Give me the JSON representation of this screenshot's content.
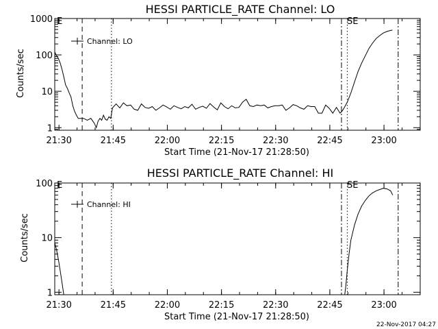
{
  "chart_data": [
    {
      "type": "line",
      "title": "HESSI PARTICLE_RATE Channel: LO",
      "xlabel": "Start Time (21-Nov-17 21:28:50)",
      "ylabel": "Counts/sec",
      "y_scale": "log",
      "ylim": [
        0.85,
        1000
      ],
      "x_units": "minutes after 21:28:50",
      "xlim": [
        0,
        101.2
      ],
      "xtick_labels": [
        "21:30",
        "21:45",
        "22:00",
        "22:15",
        "22:30",
        "22:45",
        "23:00"
      ],
      "xtick_values": [
        1.17,
        16.17,
        31.17,
        46.17,
        61.17,
        76.17,
        91.17
      ],
      "ytick_labels": [
        "1",
        "10",
        "100",
        "1000"
      ],
      "ytick_values": [
        1,
        10,
        100,
        1000
      ],
      "legend": "Channel: LO",
      "corner_labels": {
        "left": "E",
        "right": "SE"
      },
      "marker_lines": [
        {
          "style": "dashed",
          "x": 7.6
        },
        {
          "style": "dotted",
          "x": 15.7
        },
        {
          "style": "dashdot",
          "x": 79.4
        },
        {
          "style": "dotted",
          "x": 81.0
        },
        {
          "style": "dashdot",
          "x": 95.1
        }
      ],
      "series": [
        {
          "x": [
            0.0,
            0.5,
            1.0,
            1.5,
            2.0,
            2.5,
            3.0,
            3.5,
            4.0,
            4.5,
            5.0,
            5.5,
            6.0,
            6.5,
            7.0,
            7.5,
            8.0,
            9.0,
            10.0,
            11.0,
            11.5,
            12.0,
            12.5,
            13.0,
            13.5,
            14.0,
            14.5,
            15.0,
            15.5,
            16.0,
            17.0,
            18.0,
            19.0,
            20.0,
            21.0,
            22.0,
            23.0,
            24.0,
            25.0,
            26.0,
            27.0,
            28.0,
            29.0,
            30.0,
            31.0,
            32.0,
            33.0,
            34.0,
            35.0,
            36.0,
            37.0,
            38.0,
            39.0,
            40.0,
            41.0,
            42.0,
            43.0,
            44.0,
            45.0,
            46.0,
            47.0,
            48.0,
            49.0,
            50.0,
            51.0,
            52.0,
            53.0,
            54.0,
            55.0,
            56.0,
            57.0,
            58.0,
            59.0,
            60.0,
            61.0,
            62.0,
            63.0,
            64.0,
            65.0,
            66.0,
            67.0,
            68.0,
            69.0,
            70.0,
            71.0,
            72.0,
            73.0,
            74.0,
            75.0,
            76.0,
            77.0,
            78.0,
            79.0,
            79.5,
            80.0,
            81.0,
            82.0,
            83.0,
            84.0,
            85.0,
            86.0,
            87.0,
            88.0,
            89.0,
            90.0,
            91.0,
            92.0,
            93.0,
            93.5
          ],
          "values": [
            120,
            95,
            80,
            60,
            40,
            25,
            15,
            12,
            9,
            7,
            4,
            2.8,
            2.2,
            1.8,
            1.8,
            1.8,
            1.8,
            1.6,
            1.8,
            1.3,
            1.0,
            1.5,
            1.8,
            1.6,
            2.2,
            1.7,
            1.6,
            2.0,
            1.8,
            3.5,
            4.5,
            3.5,
            4.8,
            4.0,
            4.2,
            3.2,
            3.0,
            4.5,
            3.6,
            3.4,
            3.8,
            3.0,
            3.5,
            4.2,
            3.7,
            3.2,
            4.0,
            3.6,
            3.3,
            3.8,
            3.5,
            4.4,
            3.2,
            3.6,
            3.9,
            3.4,
            4.6,
            3.7,
            3.1,
            4.8,
            3.8,
            3.3,
            4.0,
            3.5,
            3.6,
            5.0,
            6.0,
            4.0,
            3.8,
            4.2,
            4.0,
            4.2,
            3.5,
            3.8,
            4.0,
            4.0,
            4.2,
            3.0,
            3.5,
            4.3,
            4.0,
            3.5,
            3.2,
            4.0,
            3.8,
            3.8,
            2.5,
            2.5,
            4.2,
            3.4,
            2.5,
            3.6,
            2.5,
            2.8,
            3.3,
            5.0,
            9.0,
            18.0,
            35.0,
            60.0,
            95.0,
            150.0,
            210.0,
            280.0,
            340.0,
            400.0,
            440.0,
            470.0,
            480.0
          ]
        }
      ]
    },
    {
      "type": "line",
      "title": "HESSI PARTICLE_RATE Channel: HI",
      "xlabel": "Start Time (21-Nov-17 21:28:50)",
      "ylabel": "Counts/sec",
      "y_scale": "log",
      "ylim": [
        0.9,
        100
      ],
      "x_units": "minutes after 21:28:50",
      "xlim": [
        0,
        101.2
      ],
      "xtick_labels": [
        "21:30",
        "21:45",
        "22:00",
        "22:15",
        "22:30",
        "22:45",
        "23:00"
      ],
      "xtick_values": [
        1.17,
        16.17,
        31.17,
        46.17,
        61.17,
        76.17,
        91.17
      ],
      "ytick_labels": [
        "1",
        "10",
        "100"
      ],
      "ytick_values": [
        1,
        10,
        100
      ],
      "legend": "Channel: HI",
      "corner_labels": {
        "left": "E",
        "right": "SE"
      },
      "marker_lines": [
        {
          "style": "dashed",
          "x": 7.6
        },
        {
          "style": "dotted",
          "x": 15.7
        },
        {
          "style": "dashdot",
          "x": 79.4
        },
        {
          "style": "dotted",
          "x": 81.0
        },
        {
          "style": "dashdot",
          "x": 95.1
        }
      ],
      "series": [
        {
          "x": [
            0.0,
            0.5,
            1.0,
            1.5,
            2.0,
            2.5
          ],
          "values": [
            8,
            6,
            4,
            2.5,
            1.5,
            0.9
          ]
        },
        {
          "x": [
            80.3,
            80.6,
            81.0,
            81.5,
            82.0,
            83.0,
            84.0,
            85.0,
            86.0,
            87.0,
            88.0,
            89.0,
            90.0,
            91.0,
            92.0,
            93.0,
            93.6
          ],
          "values": [
            0.9,
            1.3,
            2.5,
            5,
            9,
            17,
            27,
            38,
            48,
            58,
            66,
            72,
            76,
            80,
            78,
            72,
            60
          ]
        }
      ]
    }
  ],
  "footer": {
    "timestamp": "22-Nov-2017 04:27"
  }
}
